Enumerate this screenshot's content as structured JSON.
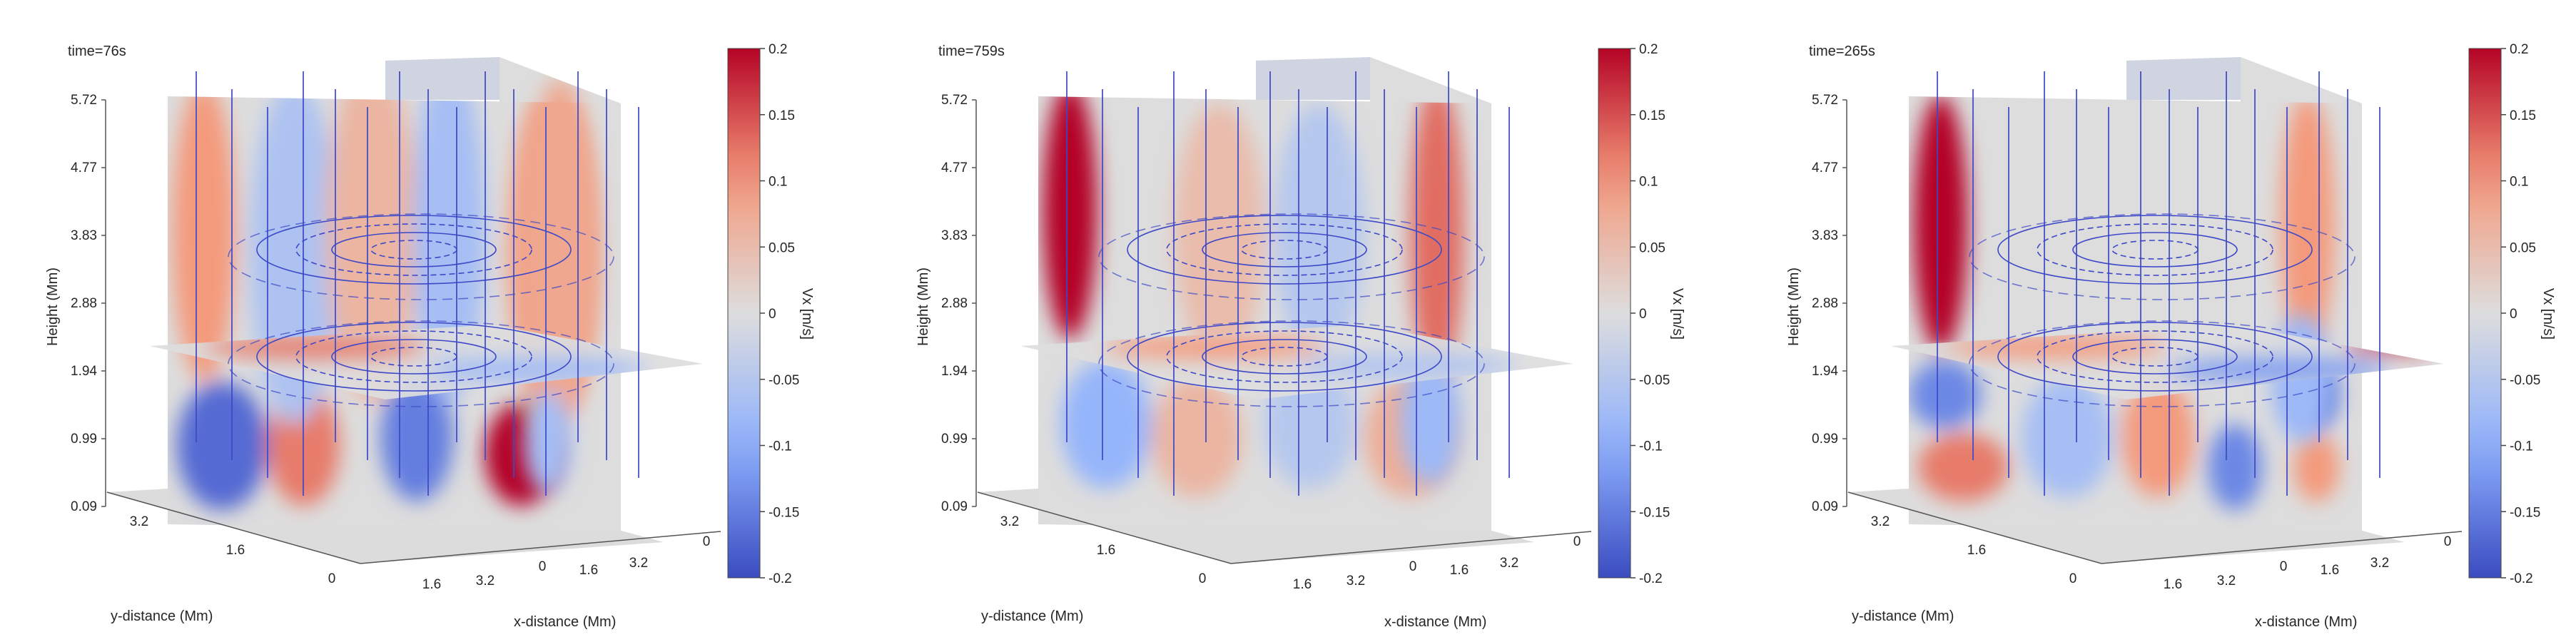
{
  "chart_data": [
    {
      "type": "heatmap",
      "subtype": "3d-slice",
      "time_label": "time=76s",
      "variable": "Vx [m/s]",
      "xlabel": "x-distance (Mm)",
      "ylabel": "y-distance (Mm)",
      "zlabel": "Height (Mm)",
      "z_ticks": [
        "0.09",
        "0.99",
        "1.94",
        "2.88",
        "3.83",
        "4.77",
        "5.72"
      ],
      "x_ticks": [
        "1.6",
        "3.2",
        "0",
        "1.6",
        "3.2",
        "0"
      ],
      "y_ticks": [
        "3.2",
        "1.6",
        "0"
      ],
      "colorbar_ticks": [
        "0.2",
        "0.15",
        "0.1",
        "0.05",
        "0",
        "-0.05",
        "-0.1",
        "-0.15",
        "-0.2"
      ],
      "clim": [
        -0.2,
        0.2
      ],
      "blobs": [
        {
          "plane": "front",
          "u": 0.12,
          "v": 0.8,
          "value": -0.17,
          "ru": 0.1,
          "rv": 0.15
        },
        {
          "plane": "front",
          "u": 0.3,
          "v": 0.8,
          "value": 0.12,
          "ru": 0.08,
          "rv": 0.14
        },
        {
          "plane": "front",
          "u": 0.55,
          "v": 0.78,
          "value": -0.15,
          "ru": 0.08,
          "rv": 0.15
        },
        {
          "plane": "front",
          "u": 0.78,
          "v": 0.82,
          "value": 0.2,
          "ru": 0.08,
          "rv": 0.12
        },
        {
          "plane": "front",
          "u": 0.08,
          "v": 0.3,
          "value": 0.1,
          "ru": 0.07,
          "rv": 0.35
        },
        {
          "plane": "front",
          "u": 0.28,
          "v": 0.35,
          "value": -0.06,
          "ru": 0.1,
          "rv": 0.4
        },
        {
          "plane": "front",
          "u": 0.45,
          "v": 0.3,
          "value": 0.06,
          "ru": 0.1,
          "rv": 0.4
        },
        {
          "plane": "front",
          "u": 0.62,
          "v": 0.3,
          "value": -0.07,
          "ru": 0.08,
          "rv": 0.4
        },
        {
          "plane": "front",
          "u": 0.85,
          "v": 0.35,
          "value": 0.09,
          "ru": 0.1,
          "rv": 0.4
        },
        {
          "plane": "right",
          "u": 0.5,
          "v": 0.4,
          "value": 0.08,
          "ru": 0.3,
          "rv": 0.4
        },
        {
          "plane": "right",
          "u": 0.4,
          "v": 0.85,
          "value": -0.07,
          "ru": 0.2,
          "rv": 0.12
        },
        {
          "plane": "horiz",
          "u": 0.3,
          "v": 0.3,
          "value": 0.12,
          "ru": 0.2,
          "rv": 0.15
        },
        {
          "plane": "horiz",
          "u": 0.7,
          "v": 0.6,
          "value": -0.08,
          "ru": 0.2,
          "rv": 0.15
        }
      ]
    },
    {
      "type": "heatmap",
      "subtype": "3d-slice",
      "time_label": "time=759s",
      "variable": "Vx [m/s]",
      "xlabel": "x-distance (Mm)",
      "ylabel": "y-distance (Mm)",
      "zlabel": "Height (Mm)",
      "z_ticks": [
        "0.09",
        "0.99",
        "1.94",
        "2.88",
        "3.83",
        "4.77",
        "5.72"
      ],
      "x_ticks": [
        "1.6",
        "3.2",
        "0",
        "1.6",
        "3.2",
        "0"
      ],
      "y_ticks": [
        "3.2",
        "1.6",
        "0"
      ],
      "colorbar_ticks": [
        "0.2",
        "0.15",
        "0.1",
        "0.05",
        "0",
        "-0.05",
        "-0.1",
        "-0.15",
        "-0.2"
      ],
      "clim": [
        -0.2,
        0.2
      ],
      "blobs": [
        {
          "plane": "front",
          "u": 0.07,
          "v": 0.25,
          "value": 0.2,
          "ru": 0.06,
          "rv": 0.3
        },
        {
          "plane": "front",
          "u": 0.88,
          "v": 0.3,
          "value": 0.13,
          "ru": 0.06,
          "rv": 0.35
        },
        {
          "plane": "front",
          "u": 0.15,
          "v": 0.75,
          "value": -0.09,
          "ru": 0.1,
          "rv": 0.15
        },
        {
          "plane": "front",
          "u": 0.35,
          "v": 0.78,
          "value": 0.06,
          "ru": 0.1,
          "rv": 0.14
        },
        {
          "plane": "front",
          "u": 0.6,
          "v": 0.75,
          "value": -0.05,
          "ru": 0.1,
          "rv": 0.15
        },
        {
          "plane": "front",
          "u": 0.82,
          "v": 0.78,
          "value": 0.07,
          "ru": 0.1,
          "rv": 0.14
        },
        {
          "plane": "front",
          "u": 0.4,
          "v": 0.3,
          "value": 0.05,
          "ru": 0.1,
          "rv": 0.3
        },
        {
          "plane": "front",
          "u": 0.62,
          "v": 0.3,
          "value": -0.05,
          "ru": 0.1,
          "rv": 0.3
        },
        {
          "plane": "right",
          "u": 0.5,
          "v": 0.8,
          "value": -0.08,
          "ru": 0.25,
          "rv": 0.15
        },
        {
          "plane": "horiz",
          "u": 0.35,
          "v": 0.3,
          "value": 0.1,
          "ru": 0.2,
          "rv": 0.15
        },
        {
          "plane": "horiz",
          "u": 0.7,
          "v": 0.55,
          "value": -0.06,
          "ru": 0.2,
          "rv": 0.15
        }
      ]
    },
    {
      "type": "heatmap",
      "subtype": "3d-slice",
      "time_label": "time=265s",
      "variable": "Vx [m/s]",
      "xlabel": "x-distance (Mm)",
      "ylabel": "y-distance (Mm)",
      "zlabel": "Height (Mm)",
      "z_ticks": [
        "0.09",
        "0.99",
        "1.94",
        "2.88",
        "3.83",
        "4.77",
        "5.72"
      ],
      "x_ticks": [
        "1.6",
        "3.2",
        "0",
        "1.6",
        "3.2",
        "0"
      ],
      "y_ticks": [
        "3.2",
        "1.6",
        "0"
      ],
      "colorbar_ticks": [
        "0.2",
        "0.15",
        "0.1",
        "0.05",
        "0",
        "-0.05",
        "-0.1",
        "-0.15",
        "-0.2"
      ],
      "clim": [
        -0.2,
        0.2
      ],
      "blobs": [
        {
          "plane": "front",
          "u": 0.07,
          "v": 0.28,
          "value": 0.2,
          "ru": 0.06,
          "rv": 0.3
        },
        {
          "plane": "front",
          "u": 0.88,
          "v": 0.28,
          "value": 0.1,
          "ru": 0.06,
          "rv": 0.3
        },
        {
          "plane": "front",
          "u": 0.08,
          "v": 0.68,
          "value": -0.14,
          "ru": 0.08,
          "rv": 0.08
        },
        {
          "plane": "front",
          "u": 0.12,
          "v": 0.85,
          "value": 0.12,
          "ru": 0.1,
          "rv": 0.08
        },
        {
          "plane": "front",
          "u": 0.35,
          "v": 0.78,
          "value": -0.07,
          "ru": 0.1,
          "rv": 0.14
        },
        {
          "plane": "front",
          "u": 0.55,
          "v": 0.78,
          "value": 0.1,
          "ru": 0.08,
          "rv": 0.14
        },
        {
          "plane": "front",
          "u": 0.72,
          "v": 0.85,
          "value": -0.14,
          "ru": 0.06,
          "rv": 0.1
        },
        {
          "plane": "front",
          "u": 0.9,
          "v": 0.68,
          "value": -0.15,
          "ru": 0.05,
          "rv": 0.08
        },
        {
          "plane": "front",
          "u": 0.9,
          "v": 0.85,
          "value": 0.1,
          "ru": 0.05,
          "rv": 0.08
        },
        {
          "plane": "right",
          "u": 0.5,
          "v": 0.7,
          "value": -0.08,
          "ru": 0.25,
          "rv": 0.15
        },
        {
          "plane": "horiz",
          "u": 0.3,
          "v": 0.3,
          "value": 0.1,
          "ru": 0.2,
          "rv": 0.15
        },
        {
          "plane": "horiz",
          "u": 0.9,
          "v": 0.3,
          "value": 0.18,
          "ru": 0.08,
          "rv": 0.08
        },
        {
          "plane": "horiz",
          "u": 0.7,
          "v": 0.6,
          "value": -0.12,
          "ru": 0.2,
          "rv": 0.15
        }
      ]
    }
  ]
}
